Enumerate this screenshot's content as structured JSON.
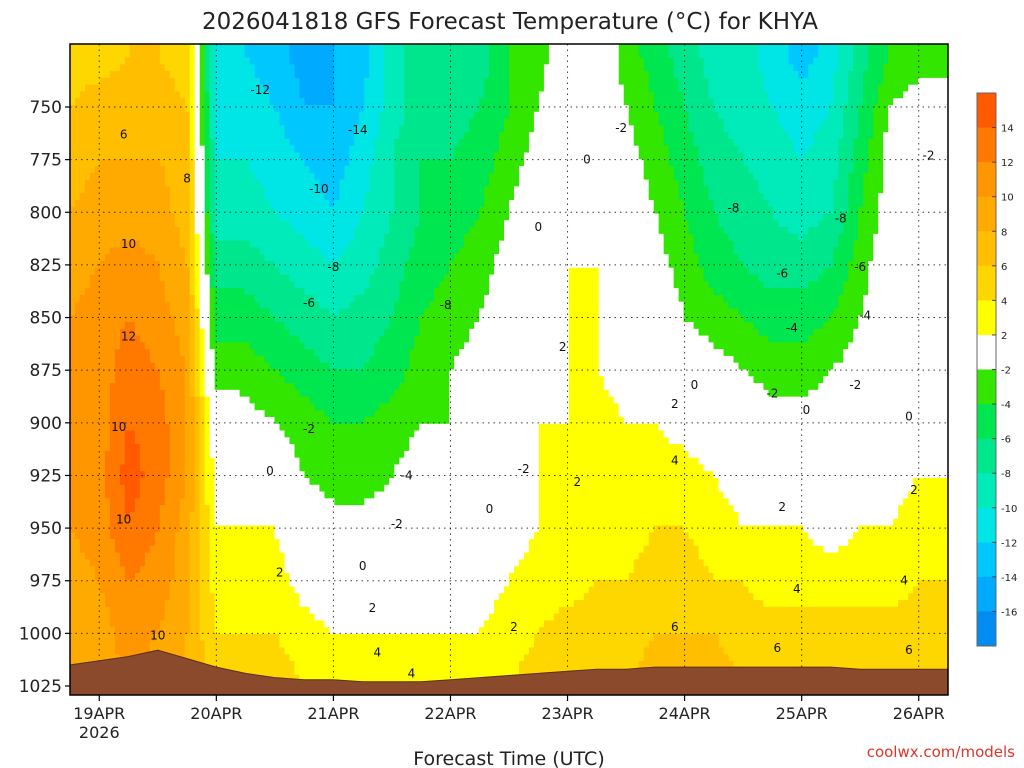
{
  "chart_data": {
    "type": "heatmap",
    "title": "2026041818 GFS Forecast Temperature (°C) for KHYA",
    "xlabel": "Forecast Time (UTC)",
    "ylabel": "Pressure (hPa)",
    "credit": "coolwx.com/models",
    "y_ticks": [
      750,
      775,
      800,
      825,
      850,
      875,
      900,
      925,
      950,
      975,
      1000,
      1025
    ],
    "ylim": [
      1030,
      720
    ],
    "x_ticks": [
      {
        "hour": 6,
        "label": "19APR",
        "sublabel": "2026"
      },
      {
        "hour": 30,
        "label": "20APR"
      },
      {
        "hour": 54,
        "label": "21APR"
      },
      {
        "hour": 78,
        "label": "22APR"
      },
      {
        "hour": 102,
        "label": "23APR"
      },
      {
        "hour": 126,
        "label": "24APR"
      },
      {
        "hour": 150,
        "label": "25APR"
      },
      {
        "hour": 174,
        "label": "26APR"
      }
    ],
    "xlim": [
      0,
      180
    ],
    "colorbar": {
      "ticks": [
        "14",
        "12",
        "10",
        "8",
        "6",
        "4",
        "2",
        "-2",
        "-4",
        "-6",
        "-8",
        "-10",
        "-12",
        "-14",
        "-16"
      ],
      "bins": [
        {
          "range": [
            14,
            16
          ],
          "color": "#ff5a00"
        },
        {
          "range": [
            12,
            14
          ],
          "color": "#ff7800"
        },
        {
          "range": [
            10,
            12
          ],
          "color": "#ff9600"
        },
        {
          "range": [
            8,
            10
          ],
          "color": "#ffaa00"
        },
        {
          "range": [
            6,
            8
          ],
          "color": "#ffbe00"
        },
        {
          "range": [
            4,
            6
          ],
          "color": "#ffd700"
        },
        {
          "range": [
            2,
            4
          ],
          "color": "#ffff00"
        },
        {
          "range": [
            -2,
            2
          ],
          "color": "#ffffff"
        },
        {
          "range": [
            -4,
            -2
          ],
          "color": "#32e600"
        },
        {
          "range": [
            -6,
            -4
          ],
          "color": "#00e650"
        },
        {
          "range": [
            -8,
            -6
          ],
          "color": "#00e68c"
        },
        {
          "range": [
            -10,
            -8
          ],
          "color": "#00ebb9"
        },
        {
          "range": [
            -12,
            -10
          ],
          "color": "#00e6e6"
        },
        {
          "range": [
            -14,
            -12
          ],
          "color": "#00c8ff"
        },
        {
          "range": [
            -16,
            -14
          ],
          "color": "#00aaff"
        },
        {
          "range": [
            -18,
            -16
          ],
          "color": "#008cf0"
        }
      ]
    },
    "grid": {
      "hours": [
        0,
        6,
        12,
        18,
        24,
        30,
        36,
        42,
        48,
        54,
        60,
        66,
        72,
        78,
        84,
        90,
        96,
        102,
        108,
        114,
        120,
        126,
        132,
        138,
        144,
        150,
        156,
        162,
        168,
        174,
        180
      ],
      "levels": [
        725,
        750,
        775,
        800,
        825,
        850,
        875,
        900,
        925,
        950,
        975,
        1000,
        1025
      ],
      "values": [
        [
          5,
          5,
          6,
          6,
          5,
          -12,
          -12,
          -13,
          -15,
          -14,
          -13,
          -9,
          -7,
          -8,
          -7,
          -4,
          -3,
          0,
          0,
          -3,
          -5,
          -7,
          -9,
          -9,
          -11,
          -13,
          -11,
          -7,
          -4,
          -3,
          -3
        ],
        [
          6,
          7,
          7,
          7,
          6,
          -11,
          -11,
          -12,
          -14,
          -14,
          -12,
          -9,
          -7,
          -7,
          -6,
          -4,
          -2,
          0,
          0,
          -2,
          -4,
          -6,
          -8,
          -9,
          -10,
          -11,
          -10,
          -6,
          -2,
          -1,
          -1
        ],
        [
          7,
          8,
          8,
          8,
          7,
          -10,
          -10,
          -11,
          -12,
          -13,
          -11,
          -8,
          -6,
          -6,
          -5,
          -3,
          -1,
          0,
          0,
          -1,
          -3,
          -5,
          -7,
          -8,
          -9,
          -10,
          -9,
          -5,
          -1,
          0,
          0
        ],
        [
          8,
          9,
          9,
          9,
          7,
          -9,
          -9,
          -10,
          -11,
          -12,
          -10,
          -8,
          -6,
          -5,
          -4,
          -2,
          0,
          1,
          1,
          0,
          -2,
          -4,
          -6,
          -7,
          -8,
          -9,
          -8,
          -4,
          -1,
          0,
          0
        ],
        [
          9,
          10,
          11,
          10,
          8,
          -7,
          -7,
          -8,
          -9,
          -10,
          -9,
          -7,
          -5,
          -4,
          -3,
          -1,
          1,
          2,
          2,
          0,
          -1,
          -3,
          -5,
          -6,
          -7,
          -7,
          -6,
          -3,
          0,
          0,
          1
        ],
        [
          10,
          11,
          12,
          11,
          9,
          -5,
          -5,
          -6,
          -7,
          -8,
          -7,
          -6,
          -4,
          -3,
          -2,
          0,
          1,
          2,
          2,
          0,
          0,
          -2,
          -3,
          -4,
          -5,
          -5,
          -4,
          -2,
          0,
          0,
          1
        ],
        [
          10,
          11,
          13,
          12,
          10,
          -3,
          -3,
          -4,
          -5,
          -6,
          -6,
          -5,
          -3,
          -2,
          -1,
          0,
          1,
          2,
          2,
          1,
          1,
          0,
          -1,
          -2,
          -3,
          -3,
          -2,
          -1,
          0,
          0,
          1
        ],
        [
          10,
          11,
          14,
          13,
          10,
          0,
          -1,
          -2,
          -3,
          -4,
          -4,
          -3,
          -2,
          -2,
          -1,
          0,
          2,
          2,
          3,
          2,
          2,
          1,
          0,
          0,
          -1,
          -1,
          -1,
          0,
          0,
          1,
          2
        ],
        [
          10,
          11,
          15,
          13,
          10,
          1,
          0,
          0,
          -2,
          -3,
          -3,
          -2,
          -1,
          -1,
          0,
          1,
          2,
          3,
          3,
          2,
          3,
          3,
          2,
          1,
          1,
          0,
          0,
          1,
          1,
          2,
          2
        ],
        [
          10,
          11,
          14,
          12,
          9,
          2,
          2,
          2,
          0,
          -1,
          -1,
          -1,
          0,
          0,
          1,
          1,
          2,
          3,
          3,
          3,
          4,
          4,
          3,
          2,
          2,
          2,
          1,
          2,
          2,
          3,
          3
        ],
        [
          9,
          10,
          12,
          11,
          9,
          3,
          3,
          3,
          1,
          0,
          0,
          0,
          1,
          1,
          1,
          2,
          3,
          3,
          4,
          4,
          5,
          5,
          4,
          4,
          3,
          3,
          3,
          3,
          3,
          4,
          4
        ],
        [
          8,
          9,
          11,
          10,
          8,
          4,
          4,
          4,
          3,
          2,
          2,
          2,
          2,
          2,
          2,
          3,
          4,
          5,
          5,
          5,
          6,
          6,
          6,
          5,
          5,
          5,
          5,
          5,
          5,
          5,
          5
        ],
        [
          8,
          9,
          10,
          9,
          8,
          5,
          5,
          5,
          4,
          4,
          4,
          4,
          3,
          3,
          3,
          4,
          5,
          6,
          6,
          6,
          7,
          7,
          7,
          6,
          6,
          6,
          6,
          6,
          6,
          6,
          6
        ]
      ]
    },
    "terrain_surface_hpa": [
      1015,
      1013,
      1011,
      1008,
      1012,
      1016,
      1019,
      1021,
      1022,
      1022,
      1023,
      1023,
      1023,
      1022,
      1021,
      1020,
      1019,
      1018,
      1017,
      1017,
      1016,
      1016,
      1016,
      1016,
      1016,
      1016,
      1016,
      1017,
      1017,
      1017,
      1017
    ],
    "contour_labels": [
      {
        "text": "-12",
        "hour": 39,
        "level": 742
      },
      {
        "text": "-14",
        "hour": 59,
        "level": 761
      },
      {
        "text": "-10",
        "hour": 51,
        "level": 789
      },
      {
        "text": "-8",
        "hour": 54,
        "level": 826
      },
      {
        "text": "-6",
        "hour": 49,
        "level": 843
      },
      {
        "text": "-8",
        "hour": 77,
        "level": 844
      },
      {
        "text": "-4",
        "hour": 69,
        "level": 925
      },
      {
        "text": "-2",
        "hour": 67,
        "level": 948
      },
      {
        "text": "-2",
        "hour": 49,
        "level": 903
      },
      {
        "text": "-2",
        "hour": 93,
        "level": 922
      },
      {
        "text": "-2",
        "hour": 113,
        "level": 760
      },
      {
        "text": "-2",
        "hour": 176,
        "level": 773
      },
      {
        "text": "-2",
        "hour": 144,
        "level": 886
      },
      {
        "text": "-2",
        "hour": 161,
        "level": 882
      },
      {
        "text": "-4",
        "hour": 148,
        "level": 855
      },
      {
        "text": "-4",
        "hour": 163,
        "level": 849
      },
      {
        "text": "-6",
        "hour": 146,
        "level": 829
      },
      {
        "text": "-6",
        "hour": 162,
        "level": 826
      },
      {
        "text": "-8",
        "hour": 136,
        "level": 798
      },
      {
        "text": "-8",
        "hour": 158,
        "level": 803
      },
      {
        "text": "0",
        "hour": 41,
        "level": 923
      },
      {
        "text": "0",
        "hour": 60,
        "level": 968
      },
      {
        "text": "0",
        "hour": 86,
        "level": 941
      },
      {
        "text": "0",
        "hour": 96,
        "level": 807
      },
      {
        "text": "0",
        "hour": 106,
        "level": 775
      },
      {
        "text": "0",
        "hour": 128,
        "level": 882
      },
      {
        "text": "0",
        "hour": 151,
        "level": 894
      },
      {
        "text": "0",
        "hour": 172,
        "level": 897
      },
      {
        "text": "2",
        "hour": 43,
        "level": 971
      },
      {
        "text": "2",
        "hour": 62,
        "level": 988
      },
      {
        "text": "2",
        "hour": 91,
        "level": 997
      },
      {
        "text": "2",
        "hour": 101,
        "level": 864
      },
      {
        "text": "2",
        "hour": 104,
        "level": 928
      },
      {
        "text": "2",
        "hour": 124,
        "level": 891
      },
      {
        "text": "2",
        "hour": 146,
        "level": 940
      },
      {
        "text": "2",
        "hour": 173,
        "level": 932
      },
      {
        "text": "4",
        "hour": 63,
        "level": 1009
      },
      {
        "text": "4",
        "hour": 70,
        "level": 1019
      },
      {
        "text": "4",
        "hour": 124,
        "level": 918
      },
      {
        "text": "4",
        "hour": 149,
        "level": 979
      },
      {
        "text": "4",
        "hour": 171,
        "level": 975
      },
      {
        "text": "6",
        "hour": 124,
        "level": 997
      },
      {
        "text": "6",
        "hour": 145,
        "level": 1007
      },
      {
        "text": "6",
        "hour": 172,
        "level": 1008
      },
      {
        "text": "6",
        "hour": 11,
        "level": 763
      },
      {
        "text": "8",
        "hour": 24,
        "level": 784
      },
      {
        "text": "10",
        "hour": 12,
        "level": 815
      },
      {
        "text": "10",
        "hour": 10,
        "level": 902
      },
      {
        "text": "10",
        "hour": 11,
        "level": 946
      },
      {
        "text": "10",
        "hour": 18,
        "level": 1001
      },
      {
        "text": "12",
        "hour": 12,
        "level": 859
      }
    ]
  }
}
